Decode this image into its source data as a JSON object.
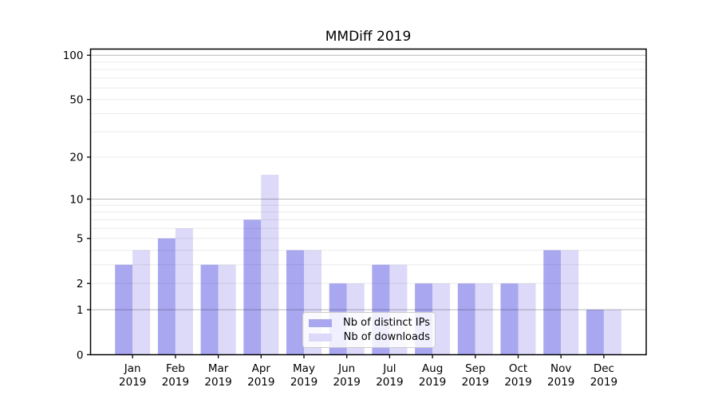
{
  "chart_data": {
    "type": "bar",
    "title": "MMDiff 2019",
    "categories": [
      "Jan",
      "Feb",
      "Mar",
      "Apr",
      "May",
      "Jun",
      "Jul",
      "Aug",
      "Sep",
      "Oct",
      "Nov",
      "Dec"
    ],
    "category_sublabel": "2019",
    "series": [
      {
        "name": "Nb of distinct IPs",
        "color": "#a9a7f0",
        "values": [
          3,
          5,
          3,
          7,
          4,
          2,
          3,
          2,
          2,
          2,
          4,
          1
        ]
      },
      {
        "name": "Nb of downloads",
        "color": "#dcdaf8",
        "values": [
          4,
          6,
          3,
          15,
          4,
          2,
          3,
          2,
          2,
          2,
          4,
          1
        ]
      }
    ],
    "xlabel": "",
    "ylabel": "",
    "y_scale": "log1p",
    "ylim": [
      0,
      110
    ],
    "y_ticks": [
      0,
      1,
      2,
      5,
      10,
      20,
      50,
      100
    ],
    "y_major_grid": [
      1,
      10,
      100
    ],
    "y_minor_grid": [
      2,
      3,
      4,
      5,
      6,
      7,
      8,
      9,
      20,
      30,
      40,
      50,
      60,
      70,
      80,
      90
    ],
    "grid": true,
    "legend_position": "lower center",
    "axis_color": "#000000",
    "major_grid_color": "#b9b9b9",
    "minor_grid_color": "#ebebeb"
  }
}
